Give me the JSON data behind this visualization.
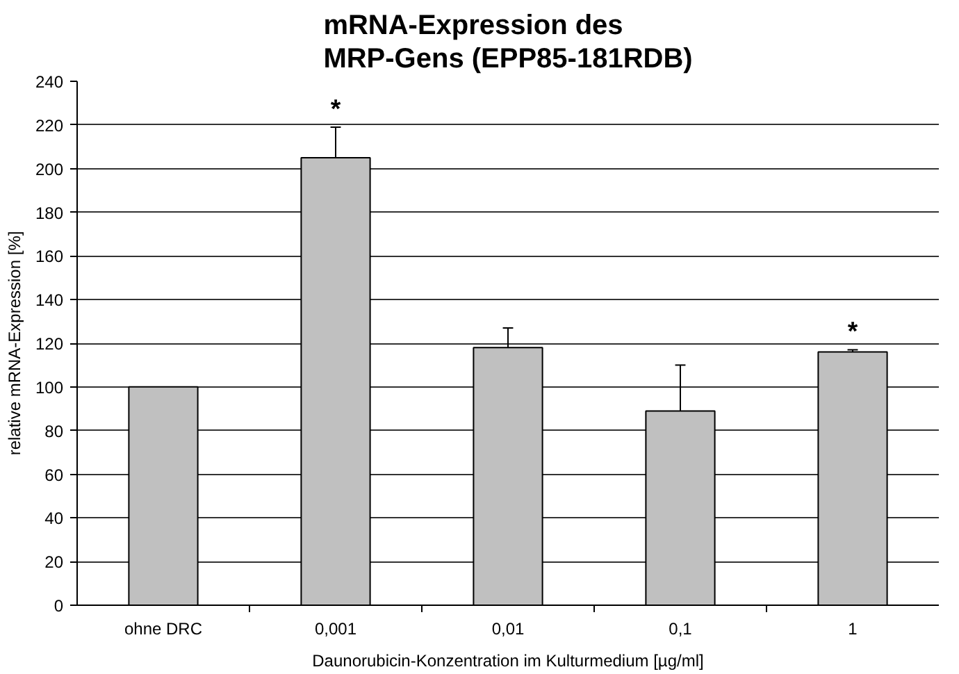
{
  "chart_data": {
    "type": "bar",
    "title": "mRNA-Expression des\nMRP-Gens (EPP85-181RDB)",
    "xlabel": "Daunorubicin-Konzentration im Kulturmedium [µg/ml]",
    "ylabel": "relative mRNA-Expression [%]",
    "categories": [
      "ohne DRC",
      "0,001",
      "0,01",
      "0,1",
      "1"
    ],
    "values": [
      100,
      205,
      118,
      89,
      116
    ],
    "errors": [
      null,
      [
        205,
        219
      ],
      [
        118,
        127
      ],
      [
        89,
        110
      ],
      [
        116,
        117
      ]
    ],
    "color": "#c0c0c0",
    "ylim": [
      0,
      240
    ],
    "yticks": [
      0,
      20,
      40,
      60,
      80,
      100,
      120,
      140,
      160,
      180,
      200,
      220,
      240
    ],
    "grid": "y",
    "annotations": [
      {
        "text": "*",
        "x": "0,001",
        "y": 221
      },
      {
        "text": "*",
        "x": "1",
        "y": 119
      }
    ]
  }
}
